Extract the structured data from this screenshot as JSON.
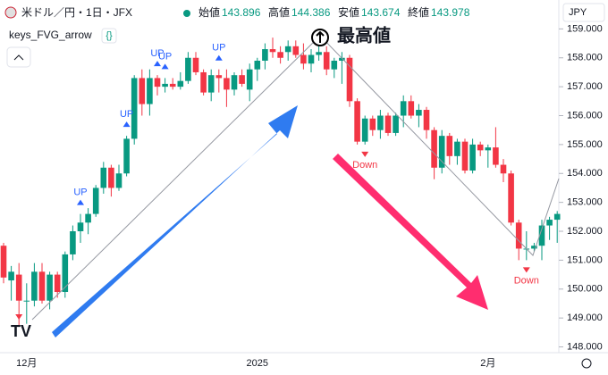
{
  "chart_data": {
    "type": "candlestick",
    "title": "米ドル／円・1日・JFX",
    "ohlc_header": [
      {
        "label": "始値",
        "value": 143.896
      },
      {
        "label": "高値",
        "value": 144.386
      },
      {
        "label": "安値",
        "value": 143.674
      },
      {
        "label": "終値",
        "value": 143.978
      }
    ],
    "indicator": "keys_FVG_arrow",
    "currency": "JPY",
    "highlight": "最高値",
    "up_color": "#089981",
    "down_color": "#f23645",
    "categories": [
      null,
      null,
      null,
      "12月",
      null,
      null,
      null,
      null,
      null,
      null,
      null,
      null,
      null,
      null,
      null,
      null,
      null,
      null,
      null,
      null,
      null,
      null,
      null,
      null,
      null,
      null,
      null,
      null,
      null,
      null,
      null,
      null,
      null,
      "2025",
      null,
      null,
      null,
      null,
      null,
      null,
      null,
      null,
      null,
      null,
      null,
      null,
      null,
      null,
      null,
      null,
      null,
      null,
      null,
      null,
      null,
      null,
      null,
      null,
      null,
      null,
      null,
      null,
      null,
      "2月",
      null,
      null,
      null,
      null,
      null,
      null,
      null,
      null,
      null
    ],
    "series": [
      {
        "open": [
          151.5,
          150.3,
          150.5,
          149.6,
          149.6,
          150.6,
          149.6,
          150.5,
          149.9,
          151.2,
          152.0,
          152.3,
          152.6,
          153.5,
          154.2,
          153.5,
          154.0,
          155.2,
          157.3,
          156.4,
          157.3,
          157.0,
          157.1,
          157.0,
          157.2,
          158.0,
          157.5,
          156.8,
          157.4,
          157.3,
          156.9,
          157.4,
          156.9,
          157.6,
          157.9,
          158.3,
          158.2,
          158.2,
          158.4,
          158.1,
          157.8,
          158.1,
          158.2,
          157.6,
          157.9,
          158.0,
          156.5,
          155.1,
          155.9,
          155.5,
          156.0,
          155.4,
          156.0,
          156.5,
          156.0,
          156.2,
          155.5,
          154.2,
          155.3,
          154.6,
          155.1,
          154.1,
          155.0,
          154.8,
          154.9,
          154.3,
          154.0,
          152.3,
          151.4,
          151.4,
          151.5,
          152.2,
          152.4
        ],
        "high": [
          151.6,
          150.8,
          150.9,
          150.2,
          150.9,
          150.9,
          150.6,
          150.6,
          151.3,
          152.2,
          152.6,
          152.8,
          153.6,
          154.4,
          154.3,
          154.3,
          155.3,
          157.4,
          157.6,
          157.6,
          157.4,
          157.3,
          157.3,
          157.5,
          158.2,
          158.2,
          157.6,
          157.6,
          157.6,
          157.6,
          157.5,
          157.6,
          157.8,
          158.0,
          158.5,
          158.7,
          158.4,
          158.6,
          158.6,
          158.5,
          158.3,
          158.7,
          158.4,
          158.0,
          158.2,
          158.1,
          156.6,
          156.0,
          156.0,
          156.2,
          156.1,
          156.1,
          156.7,
          156.7,
          156.4,
          156.3,
          155.6,
          155.5,
          155.4,
          155.2,
          155.2,
          155.2,
          155.1,
          155.0,
          155.6,
          154.5,
          154.1,
          152.4,
          152.0,
          151.6,
          152.4,
          152.5,
          152.7
        ],
        "low": [
          150.2,
          149.6,
          148.7,
          148.8,
          149.4,
          149.5,
          149.3,
          149.7,
          149.7,
          151.0,
          151.6,
          151.9,
          152.5,
          153.3,
          153.2,
          153.4,
          153.9,
          155.0,
          156.0,
          156.0,
          156.7,
          156.8,
          156.9,
          156.9,
          157.1,
          157.4,
          156.7,
          156.5,
          156.8,
          156.3,
          156.7,
          157.0,
          156.5,
          157.2,
          157.6,
          158.0,
          157.8,
          157.9,
          158.0,
          157.6,
          157.5,
          157.9,
          157.4,
          157.3,
          157.1,
          156.3,
          155.0,
          155.0,
          155.3,
          155.2,
          155.3,
          155.3,
          155.6,
          155.9,
          155.6,
          155.2,
          153.8,
          154.0,
          154.3,
          154.3,
          154.0,
          154.0,
          154.6,
          154.2,
          154.2,
          153.7,
          152.2,
          151.0,
          151.0,
          151.3,
          151.0,
          151.7,
          151.6
        ],
        "close": [
          150.4,
          150.6,
          149.6,
          149.6,
          150.6,
          149.6,
          150.5,
          149.9,
          151.2,
          152.0,
          152.3,
          152.6,
          153.5,
          154.2,
          153.5,
          154.0,
          155.2,
          157.3,
          156.4,
          157.3,
          157.0,
          157.1,
          157.0,
          157.2,
          158.0,
          157.5,
          156.8,
          157.4,
          157.3,
          156.9,
          157.4,
          157.1,
          157.6,
          157.9,
          158.3,
          158.2,
          158.0,
          158.4,
          158.1,
          157.8,
          158.1,
          158.2,
          157.6,
          157.9,
          158.0,
          156.5,
          155.1,
          155.9,
          155.5,
          156.0,
          155.4,
          156.0,
          156.5,
          156.0,
          156.2,
          155.5,
          154.2,
          155.3,
          154.6,
          155.1,
          154.1,
          155.0,
          154.8,
          154.9,
          154.3,
          154.0,
          152.3,
          151.4,
          151.4,
          151.5,
          152.2,
          152.4,
          152.6
        ]
      }
    ],
    "ylim": [
      147.8,
      160.0
    ],
    "yticks": [
      {
        "value": 148,
        "label": "148.000"
      },
      {
        "value": 149,
        "label": "149.000"
      },
      {
        "value": 150,
        "label": "150.000"
      },
      {
        "value": 151,
        "label": "151.000"
      },
      {
        "value": 152,
        "label": "152.000"
      },
      {
        "value": 153,
        "label": "153.000"
      },
      {
        "value": 154,
        "label": "154.000"
      },
      {
        "value": 155,
        "label": "155.000"
      },
      {
        "value": 156,
        "label": "156.000"
      },
      {
        "value": 157,
        "label": "157.000"
      },
      {
        "value": 158,
        "label": "158.000"
      },
      {
        "value": 159,
        "label": "159.000"
      }
    ],
    "annotations": [
      {
        "text": "UP",
        "kind": "up"
      },
      {
        "text": "UP",
        "kind": "up"
      },
      {
        "text": "UP",
        "kind": "up"
      },
      {
        "text": "UP",
        "kind": "up"
      },
      {
        "text": "UP",
        "kind": "up"
      },
      {
        "text": "Down",
        "kind": "down"
      },
      {
        "text": "Down",
        "kind": "down"
      }
    ]
  }
}
